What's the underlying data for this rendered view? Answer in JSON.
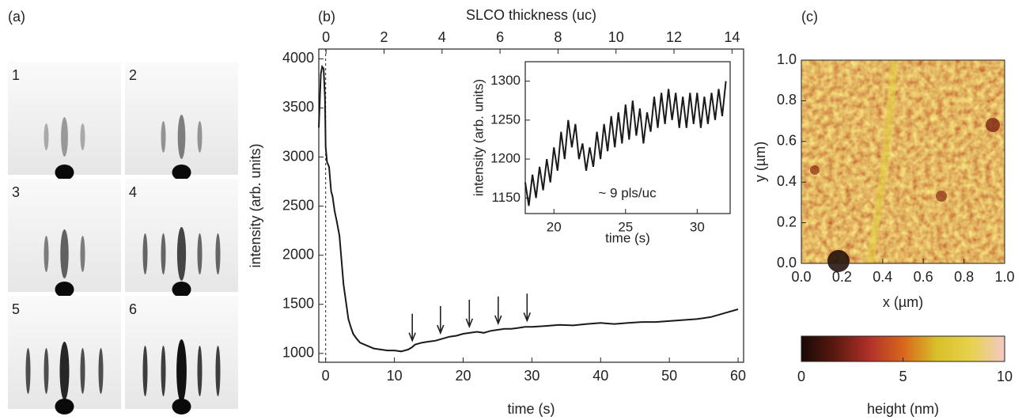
{
  "panel_labels": [
    "(a)",
    "(b)",
    "(c)"
  ],
  "rheed": {
    "labels": [
      "1",
      "2",
      "3",
      "4",
      "5",
      "6"
    ]
  },
  "chart_data": [
    {
      "type": "line",
      "x_label": "time (s)",
      "y_label": "intensity (arb. units)",
      "x2_label": "SLCO thickness (uc)",
      "xlim": [
        -1,
        60.8
      ],
      "xticks": [
        0,
        10,
        20,
        30,
        40,
        50,
        60
      ],
      "x2lim": [
        -0.25,
        14.4
      ],
      "x2ticks": [
        0,
        2,
        4,
        6,
        8,
        10,
        12,
        14
      ],
      "ylim": [
        910,
        4100
      ],
      "yticks": [
        1000,
        1500,
        2000,
        2500,
        3000,
        3500,
        4000
      ],
      "x": [
        -1,
        -0.7,
        -0.5,
        -0.3,
        -0.1,
        0,
        0.2,
        0.5,
        0.8,
        1,
        1.3,
        1.6,
        2,
        2.3,
        2.6,
        3,
        3.3,
        3.6,
        4,
        4.5,
        5,
        6,
        7,
        8,
        9,
        10,
        11,
        12,
        12.5,
        13,
        13.5,
        14,
        15,
        16,
        17,
        18,
        19,
        20,
        21,
        22,
        23,
        24,
        25,
        26,
        27,
        28,
        29,
        30,
        32,
        34,
        36,
        38,
        40,
        42,
        44,
        46,
        48,
        50,
        52,
        54,
        56,
        58,
        60
      ],
      "series": [
        {
          "color": "#1a1a1a",
          "values": [
            3300,
            3850,
            3920,
            3900,
            3600,
            3100,
            2950,
            2900,
            2650,
            2600,
            2450,
            2350,
            2200,
            1950,
            1700,
            1500,
            1350,
            1280,
            1200,
            1150,
            1110,
            1080,
            1050,
            1040,
            1030,
            1030,
            1020,
            1040,
            1060,
            1090,
            1100,
            1110,
            1120,
            1130,
            1150,
            1170,
            1180,
            1200,
            1210,
            1220,
            1210,
            1230,
            1240,
            1250,
            1250,
            1260,
            1270,
            1270,
            1280,
            1290,
            1285,
            1300,
            1310,
            1300,
            1310,
            1320,
            1320,
            1330,
            1340,
            1350,
            1370,
            1410,
            1450
          ]
        }
      ],
      "arrows_x": [
        12.6,
        16.7,
        20.9,
        25.1,
        29.3
      ],
      "vline_x": 0
    },
    {
      "type": "line",
      "x_label": "time (s)",
      "y_label": "intensity (arb. units)",
      "annotation": "~ 9 pls/uc",
      "xlim": [
        18,
        32.3
      ],
      "xticks": [
        20,
        25,
        30
      ],
      "ylim": [
        1130,
        1325
      ],
      "yticks": [
        1150,
        1200,
        1250,
        1300
      ],
      "x": [
        18,
        18.25,
        18.5,
        18.75,
        19,
        19.25,
        19.5,
        19.75,
        20,
        20.25,
        20.5,
        20.75,
        21,
        21.25,
        21.5,
        21.75,
        22,
        22.25,
        22.5,
        22.75,
        23,
        23.25,
        23.5,
        23.75,
        24,
        24.25,
        24.5,
        24.75,
        25,
        25.25,
        25.5,
        25.75,
        26,
        26.25,
        26.5,
        26.75,
        27,
        27.25,
        27.5,
        27.75,
        28,
        28.25,
        28.5,
        28.75,
        29,
        29.25,
        29.5,
        29.75,
        30,
        30.25,
        30.5,
        30.75,
        31,
        31.25,
        31.5,
        31.75,
        32
      ],
      "series": [
        {
          "color": "#1a1a1a",
          "values": [
            1170,
            1140,
            1180,
            1150,
            1190,
            1160,
            1200,
            1170,
            1215,
            1185,
            1235,
            1200,
            1250,
            1215,
            1245,
            1200,
            1220,
            1185,
            1215,
            1190,
            1235,
            1200,
            1245,
            1210,
            1255,
            1215,
            1260,
            1220,
            1270,
            1225,
            1275,
            1230,
            1265,
            1220,
            1260,
            1235,
            1280,
            1240,
            1285,
            1245,
            1290,
            1250,
            1285,
            1240,
            1280,
            1240,
            1285,
            1245,
            1285,
            1240,
            1280,
            1245,
            1285,
            1250,
            1290,
            1255,
            1300
          ]
        }
      ]
    },
    {
      "type": "image",
      "x_label": "x (µm)",
      "y_label": "y (µm)",
      "xlim": [
        0,
        1
      ],
      "ylim": [
        0,
        1
      ],
      "xticks": [
        {
          "value": 0,
          "label": "0.0"
        },
        {
          "value": 0.2,
          "label": "0.2"
        },
        {
          "value": 0.4,
          "label": "0.4"
        },
        {
          "value": 0.6,
          "label": "0.6"
        },
        {
          "value": 0.8,
          "label": "0.8"
        },
        {
          "value": 1,
          "label": "1.0"
        }
      ],
      "yticks": [
        {
          "value": 0,
          "label": "0.0"
        },
        {
          "value": 0.2,
          "label": "0.2"
        },
        {
          "value": 0.4,
          "label": "0.4"
        },
        {
          "value": 0.6,
          "label": "0.6"
        },
        {
          "value": 0.8,
          "label": "0.8"
        },
        {
          "value": 1,
          "label": "1.0"
        }
      ],
      "colorbar": {
        "label": "height (nm)",
        "lim": [
          0,
          10
        ],
        "ticks": [
          0,
          5,
          10
        ],
        "colors": [
          "#1a0805",
          "#5a1a10",
          "#b0302a",
          "#d8661c",
          "#d8c02a",
          "#e6d24e",
          "#f4c8c4"
        ]
      }
    }
  ]
}
